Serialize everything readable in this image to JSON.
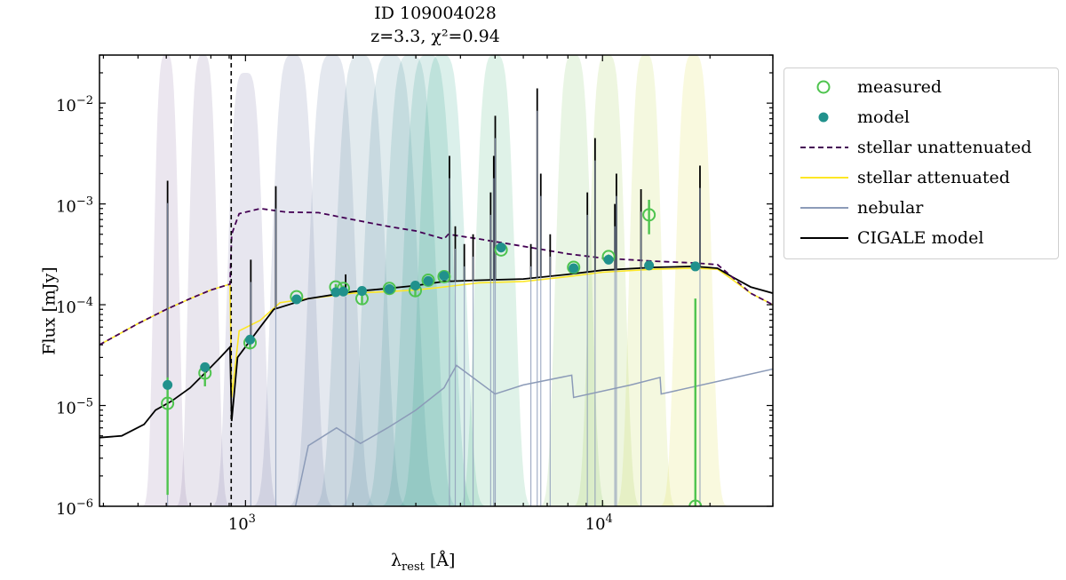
{
  "chart_data": {
    "type": "line",
    "title": "ID 109004028",
    "subtitle": "z=3.3, χ²=0.94",
    "xlabel": "λrest [Å]",
    "ylabel": "Flux [mJy]",
    "xscale": "log",
    "yscale": "log",
    "xlim": [
      390,
      30000
    ],
    "ylim": [
      1e-06,
      0.03
    ],
    "x_ticks": [
      {
        "value": 1000,
        "base": "10",
        "exp": "3"
      },
      {
        "value": 10000,
        "base": "10",
        "exp": "4"
      }
    ],
    "y_ticks": [
      {
        "value": 1e-06,
        "base": "10",
        "exp": "−6"
      },
      {
        "value": 1e-05,
        "base": "10",
        "exp": "−5"
      },
      {
        "value": 0.0001,
        "base": "10",
        "exp": "−4"
      },
      {
        "value": 0.001,
        "base": "10",
        "exp": "−3"
      },
      {
        "value": 0.01,
        "base": "10",
        "exp": "−2"
      }
    ],
    "lyman_limit_line": 912,
    "legend": {
      "position": "upper right (outside)",
      "entries": [
        {
          "label": "measured",
          "style": "open-circle",
          "color": "#4ec44e"
        },
        {
          "label": "model",
          "style": "filled-circle",
          "color": "#21918c"
        },
        {
          "label": "stellar unattenuated",
          "style": "dashed-line",
          "color": "#440154"
        },
        {
          "label": "stellar attenuated",
          "style": "line",
          "color": "#fde725"
        },
        {
          "label": "nebular",
          "style": "line",
          "color": "#8c9bb8"
        },
        {
          "label": "CIGALE model",
          "style": "line",
          "color": "#000000"
        }
      ]
    },
    "filters": [
      {
        "center": 600,
        "width": 0.035,
        "peak": 0.03,
        "color": "#8a6b9e"
      },
      {
        "center": 760,
        "width": 0.04,
        "peak": 0.03,
        "color": "#7f6a9c"
      },
      {
        "center": 1000,
        "width": 0.05,
        "peak": 0.02,
        "color": "#6f6aa3"
      },
      {
        "center": 1360,
        "width": 0.06,
        "peak": 0.03,
        "color": "#63709f"
      },
      {
        "center": 1750,
        "width": 0.065,
        "peak": 0.03,
        "color": "#5c789e"
      },
      {
        "center": 2100,
        "width": 0.07,
        "peak": 0.03,
        "color": "#52809a"
      },
      {
        "center": 2550,
        "width": 0.075,
        "peak": 0.03,
        "color": "#4a8a98"
      },
      {
        "center": 2900,
        "width": 0.07,
        "peak": 0.03,
        "color": "#3f9495"
      },
      {
        "center": 3250,
        "width": 0.07,
        "peak": 0.03,
        "color": "#329d8e"
      },
      {
        "center": 3550,
        "width": 0.065,
        "peak": 0.03,
        "color": "#2aa486"
      },
      {
        "center": 5000,
        "width": 0.055,
        "peak": 0.03,
        "color": "#44b079"
      },
      {
        "center": 8300,
        "width": 0.05,
        "peak": 0.03,
        "color": "#7cc35c"
      },
      {
        "center": 10300,
        "width": 0.05,
        "peak": 0.03,
        "color": "#9dcc4a"
      },
      {
        "center": 13200,
        "width": 0.045,
        "peak": 0.03,
        "color": "#bfd640"
      },
      {
        "center": 18000,
        "width": 0.05,
        "peak": 0.03,
        "color": "#dede3a"
      }
    ],
    "measured": [
      {
        "x": 605,
        "y": 1.05e-05,
        "err_lo": 1.3e-06,
        "err_hi": 1.9e-05
      },
      {
        "x": 770,
        "y": 2.1e-05,
        "err_lo": 1.55e-05,
        "err_hi": 2.5e-05
      },
      {
        "x": 1030,
        "y": 4.2e-05,
        "err_lo": 3.6e-05,
        "err_hi": 4.5e-05
      },
      {
        "x": 1390,
        "y": 0.00012,
        "err_lo": 0.000113,
        "err_hi": 0.000126
      },
      {
        "x": 1790,
        "y": 0.00015,
        "err_lo": 0.00013,
        "err_hi": 0.00016
      },
      {
        "x": 1880,
        "y": 0.000145,
        "err_lo": 0.000135,
        "err_hi": 0.000155
      },
      {
        "x": 2120,
        "y": 0.000115,
        "err_lo": 0.000102,
        "err_hi": 0.000132
      },
      {
        "x": 2530,
        "y": 0.000145,
        "err_lo": 0.000138,
        "err_hi": 0.000152
      },
      {
        "x": 2990,
        "y": 0.000138,
        "err_lo": 0.00012,
        "err_hi": 0.000155
      },
      {
        "x": 3250,
        "y": 0.000175,
        "err_lo": 0.000165,
        "err_hi": 0.000185
      },
      {
        "x": 3600,
        "y": 0.00019,
        "err_lo": 0.00018,
        "err_hi": 0.0002
      },
      {
        "x": 5200,
        "y": 0.00035,
        "err_lo": 0.00033,
        "err_hi": 0.00037
      },
      {
        "x": 8300,
        "y": 0.000235,
        "err_lo": 0.00022,
        "err_hi": 0.00025
      },
      {
        "x": 10400,
        "y": 0.0003,
        "err_lo": 0.000285,
        "err_hi": 0.000315
      },
      {
        "x": 13500,
        "y": 0.00078,
        "err_lo": 0.0005,
        "err_hi": 0.0011
      },
      {
        "x": 18200,
        "y": 1e-06,
        "err_lo": 1e-06,
        "err_hi": 0.000115
      }
    ],
    "model_points": [
      {
        "x": 605,
        "y": 1.6e-05
      },
      {
        "x": 770,
        "y": 2.4e-05
      },
      {
        "x": 1030,
        "y": 4.5e-05
      },
      {
        "x": 1390,
        "y": 0.000113
      },
      {
        "x": 1790,
        "y": 0.000133
      },
      {
        "x": 1880,
        "y": 0.000135
      },
      {
        "x": 2120,
        "y": 0.000137
      },
      {
        "x": 2530,
        "y": 0.000143
      },
      {
        "x": 2990,
        "y": 0.000155
      },
      {
        "x": 3250,
        "y": 0.000172
      },
      {
        "x": 3600,
        "y": 0.000193
      },
      {
        "x": 5200,
        "y": 0.00037
      },
      {
        "x": 8300,
        "y": 0.00023
      },
      {
        "x": 10400,
        "y": 0.00028
      },
      {
        "x": 13500,
        "y": 0.000245
      },
      {
        "x": 18200,
        "y": 0.00024
      }
    ],
    "series": [
      {
        "name": "stellar unattenuated",
        "points": [
          [
            390,
            4e-05
          ],
          [
            500,
            6.5e-05
          ],
          [
            600,
            9e-05
          ],
          [
            700,
            0.000115
          ],
          [
            800,
            0.00014
          ],
          [
            905,
            0.00016
          ],
          [
            915,
            0.0005
          ],
          [
            960,
            0.0008
          ],
          [
            1100,
            0.0009
          ],
          [
            1300,
            0.00083
          ],
          [
            1600,
            0.00082
          ],
          [
            2000,
            0.0007
          ],
          [
            2500,
            0.0006
          ],
          [
            3000,
            0.00054
          ],
          [
            3600,
            0.00045
          ],
          [
            3700,
            0.0005
          ],
          [
            4500,
            0.00045
          ],
          [
            6000,
            0.00038
          ],
          [
            8000,
            0.00032
          ],
          [
            10000,
            0.00029
          ],
          [
            14000,
            0.00027
          ],
          [
            18000,
            0.00026
          ],
          [
            21000,
            0.00025
          ],
          [
            23000,
            0.00019
          ],
          [
            26000,
            0.00013
          ],
          [
            30000,
            0.0001
          ]
        ]
      },
      {
        "name": "stellar attenuated",
        "points": [
          [
            390,
            4e-05
          ],
          [
            500,
            6.5e-05
          ],
          [
            600,
            9e-05
          ],
          [
            700,
            0.000115
          ],
          [
            800,
            0.00014
          ],
          [
            905,
            0.00016
          ],
          [
            915,
            1.2e-05
          ],
          [
            960,
            5.5e-05
          ],
          [
            1100,
            7e-05
          ],
          [
            1250,
            0.000105
          ],
          [
            1500,
            0.000115
          ],
          [
            2000,
            0.00013
          ],
          [
            2500,
            0.000135
          ],
          [
            3000,
            0.00014
          ],
          [
            3600,
            0.00015
          ],
          [
            4500,
            0.000165
          ],
          [
            6000,
            0.00017
          ],
          [
            8000,
            0.00019
          ],
          [
            10000,
            0.00021
          ],
          [
            14000,
            0.000225
          ],
          [
            18000,
            0.00023
          ],
          [
            21000,
            0.000225
          ],
          [
            23000,
            0.00018
          ],
          [
            26000,
            0.00013
          ],
          [
            30000,
            0.0001
          ]
        ]
      },
      {
        "name": "nebular",
        "points": [
          [
            1380,
            1e-06
          ],
          [
            1500,
            4e-06
          ],
          [
            1800,
            6e-06
          ],
          [
            2100,
            4.2e-06
          ],
          [
            2500,
            6e-06
          ],
          [
            3000,
            9e-06
          ],
          [
            3600,
            1.5e-05
          ],
          [
            3700,
            1.8e-05
          ],
          [
            3900,
            2.5e-05
          ],
          [
            5000,
            1.3e-05
          ],
          [
            6000,
            1.6e-05
          ],
          [
            8200,
            2e-05
          ],
          [
            8300,
            1.2e-05
          ],
          [
            12000,
            1.6e-05
          ],
          [
            14500,
            1.9e-05
          ],
          [
            14600,
            1.3e-05
          ],
          [
            22000,
            1.8e-05
          ],
          [
            30000,
            2.3e-05
          ]
        ]
      },
      {
        "name": "CIGALE model",
        "points": [
          [
            390,
            4.8e-06
          ],
          [
            450,
            5e-06
          ],
          [
            520,
            6.5e-06
          ],
          [
            560,
            9e-06
          ],
          [
            620,
            1.1e-05
          ],
          [
            700,
            1.5e-05
          ],
          [
            780,
            2.2e-05
          ],
          [
            850,
            3e-05
          ],
          [
            905,
            3.8e-05
          ],
          [
            915,
            7e-06
          ],
          [
            950,
            3e-05
          ],
          [
            1100,
            6e-05
          ],
          [
            1200,
            9e-05
          ],
          [
            1500,
            0.000115
          ],
          [
            2000,
            0.000135
          ],
          [
            2500,
            0.000145
          ],
          [
            3000,
            0.000155
          ],
          [
            3600,
            0.00017
          ],
          [
            4500,
            0.000175
          ],
          [
            6000,
            0.00018
          ],
          [
            8000,
            0.0002
          ],
          [
            10000,
            0.00022
          ],
          [
            14000,
            0.000235
          ],
          [
            18000,
            0.00024
          ],
          [
            21000,
            0.00023
          ],
          [
            23000,
            0.00019
          ],
          [
            26000,
            0.00015
          ],
          [
            30000,
            0.00013
          ]
        ]
      }
    ],
    "emission_lines": [
      {
        "x": 605,
        "peak": 0.0017
      },
      {
        "x": 1035,
        "peak": 0.00028
      },
      {
        "x": 1216,
        "peak": 0.0015
      },
      {
        "x": 1908,
        "peak": 0.0002
      },
      {
        "x": 3727,
        "peak": 0.003
      },
      {
        "x": 3869,
        "peak": 0.0006
      },
      {
        "x": 4101,
        "peak": 0.0004
      },
      {
        "x": 4340,
        "peak": 0.0005
      },
      {
        "x": 4861,
        "peak": 0.0013
      },
      {
        "x": 4959,
        "peak": 0.003
      },
      {
        "x": 5007,
        "peak": 0.0075
      },
      {
        "x": 6300,
        "peak": 0.0004
      },
      {
        "x": 6563,
        "peak": 0.014
      },
      {
        "x": 6716,
        "peak": 0.002
      },
      {
        "x": 7136,
        "peak": 0.0005
      },
      {
        "x": 9069,
        "peak": 0.0013
      },
      {
        "x": 9531,
        "peak": 0.0045
      },
      {
        "x": 10830,
        "peak": 0.001
      },
      {
        "x": 10938,
        "peak": 0.002
      },
      {
        "x": 12818,
        "peak": 0.0014
      },
      {
        "x": 18751,
        "peak": 0.0024
      }
    ]
  }
}
